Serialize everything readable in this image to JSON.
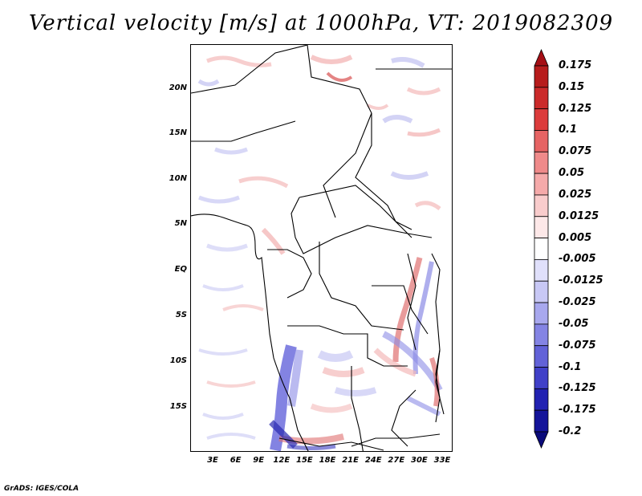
{
  "title": "Vertical velocity [m/s] at 1000hPa, VT: 2019082309",
  "footer": "GrADS: IGES/COLA",
  "map": {
    "lat_labels": [
      "20N",
      "15N",
      "10N",
      "5N",
      "EQ",
      "5S",
      "10S",
      "15S"
    ],
    "lon_labels": [
      "3E",
      "6E",
      "9E",
      "12E",
      "15E",
      "18E",
      "21E",
      "24E",
      "27E",
      "30E",
      "33E"
    ]
  },
  "colorbar": {
    "labels": [
      "0.175",
      "0.15",
      "0.125",
      "0.1",
      "0.075",
      "0.05",
      "0.025",
      "0.0125",
      "0.005",
      "-0.005",
      "-0.0125",
      "-0.025",
      "-0.05",
      "-0.075",
      "-0.1",
      "-0.125",
      "-0.175",
      "-0.2"
    ],
    "colors": [
      "#a50f15",
      "#b71c1c",
      "#cb2a2a",
      "#dc3c3c",
      "#e66464",
      "#ef8a8a",
      "#f5aaaa",
      "#f9cccc",
      "#fde8e8",
      "#ffffff",
      "#e0e0fb",
      "#c8c8f5",
      "#a8a8ee",
      "#8484e4",
      "#6262d8",
      "#4040c8",
      "#2222b2",
      "#14149a",
      "#0a0a7a"
    ]
  }
}
